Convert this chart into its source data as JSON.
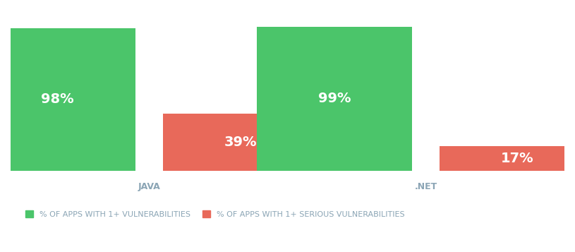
{
  "groups": [
    "JAVA",
    ".NET"
  ],
  "green_values": [
    98,
    99
  ],
  "red_values": [
    39,
    17
  ],
  "green_color": "#4BC56A",
  "red_color": "#E8695A",
  "background_color": "#ffffff",
  "label_color": "#ffffff",
  "xlabel_color": "#8BA5B5",
  "legend_green_label": "% OF APPS WITH 1+ VULNERABILITIES",
  "legend_red_label": "% OF APPS WITH 1+ SERIOUS VULNERABILITIES",
  "bar_width": 0.28,
  "bar_gap": 0.05,
  "group_centers": [
    0.25,
    0.75
  ],
  "ylim": [
    0,
    110
  ],
  "label_fontsize": 14,
  "xlabel_fontsize": 9,
  "legend_fontsize": 8
}
